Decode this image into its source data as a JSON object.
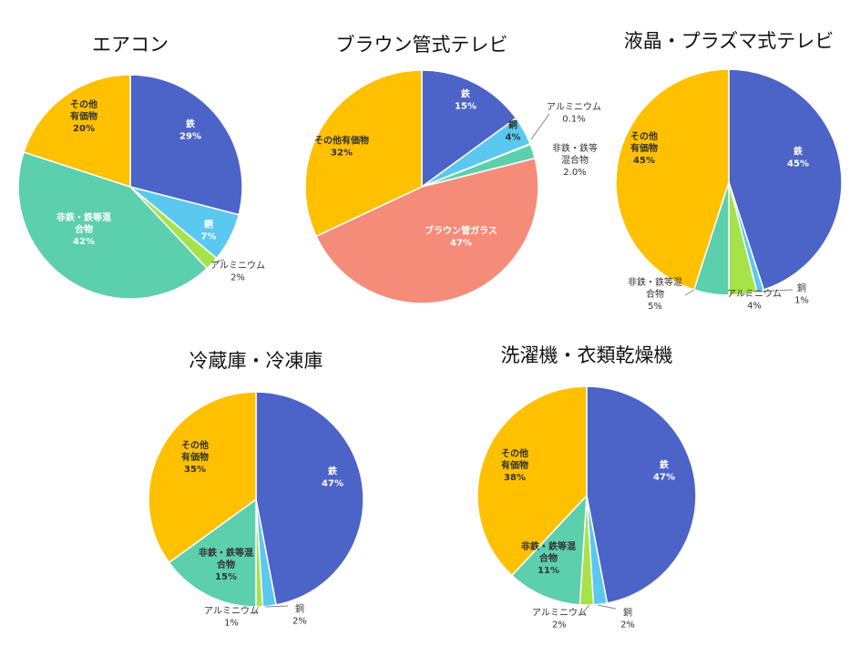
{
  "colors": {
    "鉄": "#4c63c8",
    "銅": "#5bc8f0",
    "アルミニウム": "#a6e34a",
    "非鉄・鉄等混合物": "#5ccfac",
    "ブラウン管ガラス": "#f58c79",
    "その他有価物": "#ffc000"
  },
  "chart_data": [
    {
      "type": "pie",
      "title": "エアコン",
      "slices": [
        {
          "label": "鉄",
          "display_label": "鉄",
          "value": 29,
          "value_text": "29%"
        },
        {
          "label": "銅",
          "display_label": "銅",
          "value": 7,
          "value_text": "7%"
        },
        {
          "label": "アルミニウム",
          "display_label": "アルミニウム",
          "value": 2,
          "value_text": "2%"
        },
        {
          "label": "非鉄・鉄等混合物",
          "display_label": "非鉄・鉄等混|合物",
          "value": 42,
          "value_text": "42%"
        },
        {
          "label": "その他有価物",
          "display_label": "その他|有価物",
          "value": 20,
          "value_text": "20%"
        }
      ]
    },
    {
      "type": "pie",
      "title": "ブラウン管式テレビ",
      "slices": [
        {
          "label": "鉄",
          "display_label": "鉄",
          "value": 15,
          "value_text": "15%"
        },
        {
          "label": "銅",
          "display_label": "銅",
          "value": 4,
          "value_text": "4%"
        },
        {
          "label": "アルミニウム",
          "display_label": "アルミニウム",
          "value": 0.1,
          "value_text": "0.1%"
        },
        {
          "label": "非鉄・鉄等混合物",
          "display_label": "非鉄・鉄等|混合物",
          "value": 2.0,
          "value_text": "2.0%"
        },
        {
          "label": "ブラウン管ガラス",
          "display_label": "ブラウン管ガラス",
          "value": 47,
          "value_text": "47%"
        },
        {
          "label": "その他有価物",
          "display_label": "その他有価物",
          "value": 32,
          "value_text": "32%"
        }
      ]
    },
    {
      "type": "pie",
      "title": "液晶・プラズマ式テレビ",
      "slices": [
        {
          "label": "鉄",
          "display_label": "鉄",
          "value": 45,
          "value_text": "45%"
        },
        {
          "label": "銅",
          "display_label": "銅",
          "value": 1,
          "value_text": "1%"
        },
        {
          "label": "アルミニウム",
          "display_label": "アルミニウム",
          "value": 4,
          "value_text": "4%"
        },
        {
          "label": "非鉄・鉄等混合物",
          "display_label": "非鉄・鉄等混|合物",
          "value": 5,
          "value_text": "5%"
        },
        {
          "label": "その他有価物",
          "display_label": "その他|有価物",
          "value": 45,
          "value_text": "45%"
        }
      ]
    },
    {
      "type": "pie",
      "title": "冷蔵庫・冷凍庫",
      "slices": [
        {
          "label": "鉄",
          "display_label": "鉄",
          "value": 47,
          "value_text": "47%"
        },
        {
          "label": "銅",
          "display_label": "銅",
          "value": 2,
          "value_text": "2%"
        },
        {
          "label": "アルミニウム",
          "display_label": "アルミニウム",
          "value": 1,
          "value_text": "1%"
        },
        {
          "label": "非鉄・鉄等混合物",
          "display_label": "非鉄・鉄等混|合物",
          "value": 15,
          "value_text": "15%"
        },
        {
          "label": "その他有価物",
          "display_label": "その他|有価物",
          "value": 35,
          "value_text": "35%"
        }
      ]
    },
    {
      "type": "pie",
      "title": "洗濯機・衣類乾燥機",
      "slices": [
        {
          "label": "鉄",
          "display_label": "鉄",
          "value": 47,
          "value_text": "47%"
        },
        {
          "label": "銅",
          "display_label": "銅",
          "value": 2,
          "value_text": "2%"
        },
        {
          "label": "アルミニウム",
          "display_label": "アルミニウム",
          "value": 2,
          "value_text": "2%"
        },
        {
          "label": "非鉄・鉄等混合物",
          "display_label": "非鉄・鉄等混|合物",
          "value": 11,
          "value_text": "11%"
        },
        {
          "label": "その他有価物",
          "display_label": "その他|有価物",
          "value": 38,
          "value_text": "38%"
        }
      ]
    }
  ]
}
